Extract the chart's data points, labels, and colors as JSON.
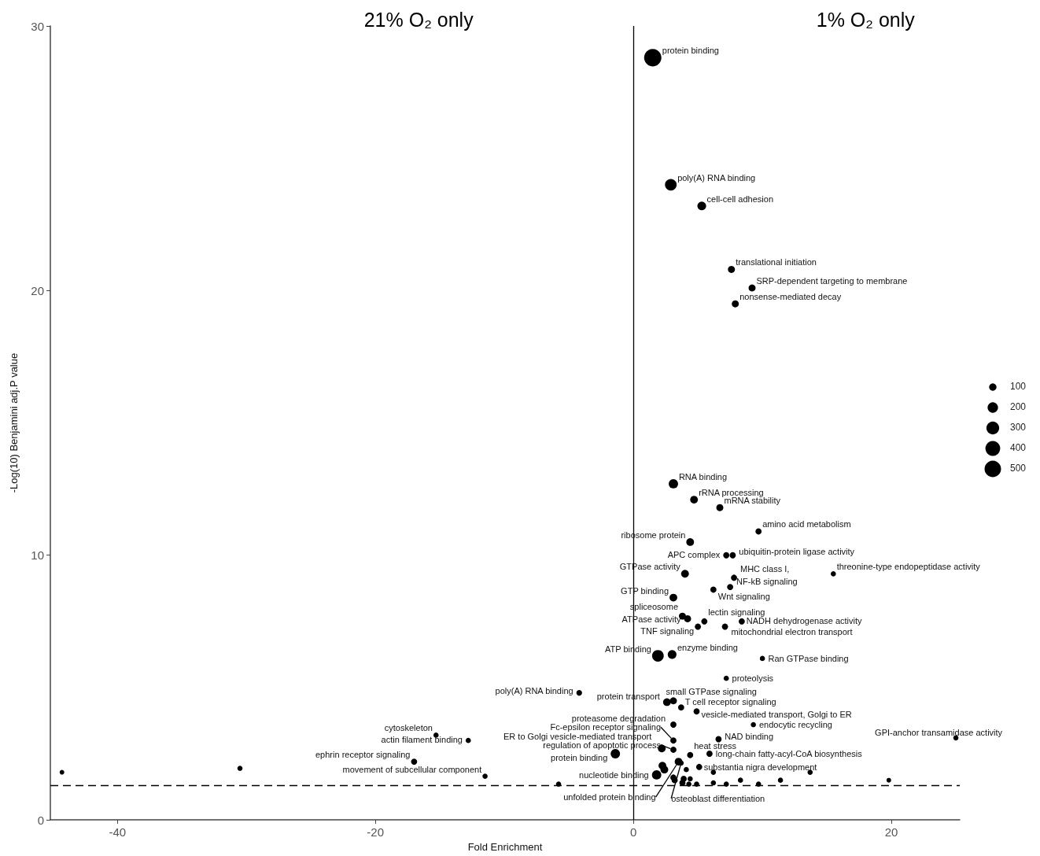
{
  "chart_data": {
    "type": "bubble",
    "xlabel": "Fold Enrichment",
    "ylabel": "-Log(10) Benjamini adj.P value",
    "annotations": [
      "21% O₂ only",
      "1% O₂ only"
    ],
    "xlim": [
      -45.2,
      25.3
    ],
    "xticks": [
      -40,
      -20,
      0,
      20
    ],
    "ylim": [
      0,
      30
    ],
    "yticks": [
      0,
      10,
      20,
      30
    ],
    "grid": false,
    "size_legend": [
      100,
      200,
      300,
      400,
      500
    ],
    "ref_lines": [
      {
        "axis": "x",
        "value": 0,
        "color": "#000000",
        "line_style": "solid"
      },
      {
        "axis": "y",
        "value": 1.3,
        "color": "#000000",
        "line_style": "dashed"
      }
    ],
    "series": [
      {
        "color": "#000000",
        "x": [
          1.5,
          2.9,
          5.3,
          7.6,
          9.2,
          7.9,
          3.1,
          4.7,
          6.7,
          9.7,
          4.4,
          7.2,
          7.7,
          4.0,
          7.8,
          15.5,
          7.5,
          6.2,
          3.1,
          3.8,
          4.2,
          5.5,
          8.4,
          5.0,
          7.1,
          1.9,
          3.0,
          10.0,
          7.2,
          -4.2,
          2.6,
          3.1,
          3.7,
          4.9,
          3.1,
          9.3,
          3.1,
          3.1,
          2.2,
          -12.8,
          -15.3,
          6.6,
          25.0,
          4.4,
          5.9,
          5.1,
          -1.4,
          -17.0,
          -11.5,
          1.8,
          3.5,
          3.7,
          2.25,
          2.4,
          4.1,
          6.2,
          13.7,
          3.1,
          3.2,
          3.9,
          4.4,
          8.3,
          11.4,
          3.8,
          4.3,
          4.9,
          6.2,
          7.2,
          9.7,
          19.8,
          -5.8,
          -30.5,
          -44.3
        ],
        "values": [
          28.8,
          24.0,
          23.2,
          20.8,
          20.1,
          19.5,
          12.7,
          12.1,
          11.8,
          10.9,
          10.5,
          10.0,
          10.0,
          9.3,
          9.15,
          9.3,
          8.8,
          8.7,
          8.4,
          7.7,
          7.6,
          7.5,
          7.5,
          7.3,
          7.3,
          6.2,
          6.25,
          6.1,
          5.35,
          4.8,
          4.45,
          4.5,
          4.25,
          4.1,
          3.6,
          3.6,
          3.0,
          2.65,
          2.7,
          3.0,
          3.2,
          3.05,
          3.1,
          2.45,
          2.5,
          2.0,
          2.5,
          2.2,
          1.65,
          1.7,
          2.2,
          2.15,
          2.05,
          1.9,
          1.9,
          1.8,
          1.8,
          1.6,
          1.5,
          1.55,
          1.55,
          1.5,
          1.5,
          1.4,
          1.35,
          1.35,
          1.4,
          1.35,
          1.35,
          1.5,
          1.35,
          1.95,
          1.8
        ],
        "sizes": [
          550,
          250,
          140,
          90,
          90,
          90,
          160,
          110,
          90,
          70,
          110,
          70,
          70,
          110,
          70,
          50,
          70,
          70,
          110,
          90,
          90,
          70,
          70,
          70,
          70,
          250,
          140,
          50,
          50,
          60,
          110,
          90,
          70,
          70,
          70,
          50,
          70,
          70,
          110,
          50,
          50,
          70,
          50,
          70,
          70,
          70,
          160,
          70,
          50,
          160,
          110,
          50,
          110,
          110,
          50,
          50,
          50,
          70,
          70,
          70,
          50,
          50,
          50,
          70,
          50,
          50,
          50,
          50,
          50,
          40,
          50,
          50,
          40
        ],
        "value_labels": [
          "protein binding",
          "poly(A) RNA binding",
          "cell-cell adhesion",
          "translational initiation",
          "SRP-dependent targeting to membrane",
          "nonsense-mediated decay",
          "RNA binding",
          "rRNA processing",
          "mRNA stability",
          "amino acid metabolism",
          "ribosome protein",
          "APC complex",
          "ubiquitin-protein ligase activity",
          "GTPase activity",
          "MHC class I,",
          "threonine-type endopeptidase activity",
          "NF-kB signaling",
          "Wnt signaling",
          "GTP binding",
          "spliceosome",
          "ATPase activity",
          "lectin signaling",
          "NADH dehydrogenase activity",
          "TNF signaling",
          "mitochondrial electron transport",
          "ATP binding",
          "enzyme binding",
          "Ran GTPase binding",
          "proteolysis",
          "poly(A) RNA binding",
          "protein transport",
          "small GTPase signaling",
          "T cell receptor signaling",
          "vesicle-mediated transport, Golgi to ER",
          "proteasome degradation",
          "endocytic recycling",
          "Fc-epsilon receptor signaling",
          "regulation of apoptotic process",
          "ER to Golgi vesicle-mediated transport",
          "actin filament binding",
          "cytoskeleton",
          "NAD binding",
          "GPI-anchor transamidase activity",
          "heat stress",
          "long-chain fatty-acyl-CoA biosynthesis",
          "substantia nigra development",
          "protein binding",
          "ephrin receptor signaling",
          "movement of subcellular component",
          "nucleotide binding",
          "unfolded protein binding",
          "osteoblast differentiation",
          null,
          null,
          null,
          null,
          null,
          null,
          null,
          null,
          null,
          null,
          null,
          null,
          null,
          null,
          null,
          null,
          null,
          null,
          null,
          null,
          null
        ]
      }
    ]
  }
}
